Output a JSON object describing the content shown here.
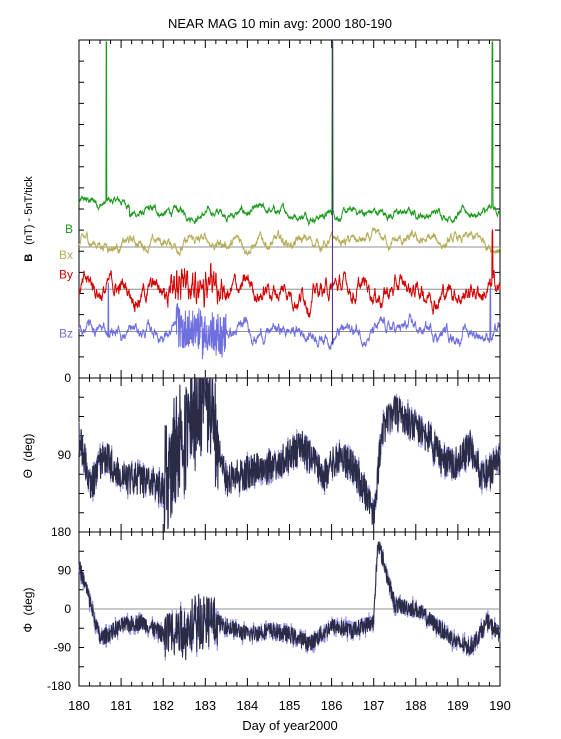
{
  "title": "NEAR MAG 10 min avg: 2000 180-190",
  "xlabel": "Day of year2000",
  "x_ticks": [
    "180",
    "181",
    "182",
    "183",
    "184",
    "185",
    "186",
    "187",
    "188",
    "189",
    "190"
  ],
  "colors": {
    "B": "#1a9a1a",
    "Bx": "#b5ad5a",
    "By": "#d40000",
    "Bz": "#6f6fe0",
    "angle_line": "#2b2b45",
    "angle_band": "#9a9af0",
    "spike": "#552277",
    "refline": "#909090"
  },
  "chart_data": [
    {
      "type": "line",
      "panel": "field",
      "ylabel_bold": "B",
      "ylabel": "(nT) - 5nT/tick",
      "y_tick_labels": [
        "0"
      ],
      "x": {
        "start": 180,
        "end": 190,
        "step_min": 10
      },
      "series": [
        {
          "name": "B",
          "baseline": 6.2,
          "mean_offset": 1.6,
          "noise_amp": 0.6,
          "spikes": [
            180.65,
            186.02,
            189.82
          ]
        },
        {
          "name": "Bx",
          "baseline": 6.2,
          "mean_offset": 0.2,
          "noise_amp": 0.8,
          "spikes": []
        },
        {
          "name": "By",
          "baseline": 4.2,
          "mean_offset": 0.0,
          "noise_amp": 1.4,
          "spikes": [
            189.82
          ]
        },
        {
          "name": "Bz",
          "baseline": 2.2,
          "mean_offset": 0.0,
          "noise_amp": 1.0,
          "spikes": [
            180.7,
            189.77
          ]
        }
      ],
      "vertical_spike_x": 186.02
    },
    {
      "type": "line",
      "panel": "theta",
      "ylabel_symbol": "Θ",
      "ylabel": "(deg)",
      "ylim": [
        180,
        0
      ],
      "y_tick_labels": [
        "90"
      ],
      "x": [
        180,
        180.3,
        180.6,
        181,
        181.5,
        182,
        182.3,
        182.7,
        183,
        183.5,
        184,
        184.5,
        185,
        185.3,
        185.8,
        186.2,
        186.6,
        187,
        187.2,
        187.5,
        188,
        188.3,
        188.6,
        189,
        189.3,
        189.6,
        190
      ],
      "values": [
        70,
        125,
        90,
        115,
        120,
        130,
        95,
        40,
        10,
        120,
        110,
        105,
        90,
        80,
        115,
        90,
        110,
        160,
        60,
        40,
        55,
        70,
        95,
        100,
        80,
        120,
        95
      ]
    },
    {
      "type": "line",
      "panel": "phi",
      "ylabel_symbol": "Φ",
      "ylabel": "(deg)",
      "ylim": [
        -180,
        180
      ],
      "y_tick_labels": [
        "180",
        "90",
        "0",
        "-90",
        "-180"
      ],
      "x": [
        180,
        180.2,
        180.5,
        181,
        181.5,
        182,
        182.5,
        183,
        183.5,
        184,
        184.5,
        185,
        185.5,
        186,
        186.5,
        187,
        187.1,
        187.5,
        188,
        188.5,
        189,
        189.3,
        189.7,
        190
      ],
      "values": [
        100,
        40,
        -70,
        -40,
        -30,
        -60,
        -50,
        -20,
        -40,
        -60,
        -50,
        -60,
        -80,
        -40,
        -50,
        -30,
        160,
        10,
        0,
        -40,
        -80,
        -90,
        -30,
        -60
      ]
    }
  ]
}
